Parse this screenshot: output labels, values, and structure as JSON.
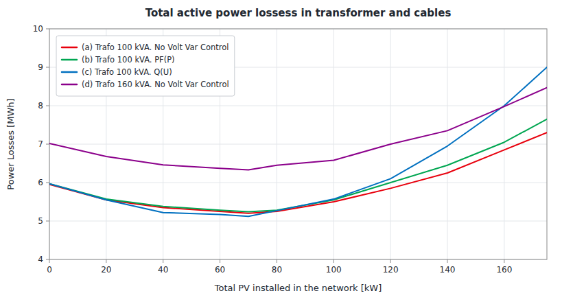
{
  "chart_data": {
    "type": "line",
    "title": "Total active power lossess in transformer and cables",
    "x_label": "Total PV installed in the network [kW]",
    "y_label": "Power Losses [MWh]",
    "x": [
      0,
      20,
      40,
      60,
      70,
      80,
      100,
      120,
      140,
      160,
      175
    ],
    "xlim": [
      0,
      175
    ],
    "ylim": [
      4,
      10
    ],
    "xticks": [
      0,
      20,
      40,
      60,
      80,
      100,
      120,
      140,
      160
    ],
    "yticks": [
      4,
      5,
      6,
      7,
      8,
      9,
      10
    ],
    "grid": true,
    "legend": "upper left",
    "series": [
      {
        "name": "(a) Trafo 100 kVA. No Volt Var Control",
        "color": "#e8000d",
        "values": [
          5.95,
          5.55,
          5.35,
          5.25,
          5.2,
          5.25,
          5.5,
          5.85,
          6.25,
          6.85,
          7.3
        ]
      },
      {
        "name": "(b) Trafo 100 kVA. PF(P)",
        "color": "#00a651",
        "values": [
          5.97,
          5.57,
          5.38,
          5.28,
          5.24,
          5.28,
          5.55,
          6.0,
          6.45,
          7.05,
          7.65
        ]
      },
      {
        "name": "(c) Trafo 100 kVA. Q(U)",
        "color": "#0070c0",
        "values": [
          5.97,
          5.55,
          5.22,
          5.17,
          5.12,
          5.27,
          5.57,
          6.1,
          6.95,
          8.0,
          9.0
        ]
      },
      {
        "name": "(d) Trafo 160 kVA. No Volt Var Control",
        "color": "#8b008b",
        "values": [
          7.02,
          6.68,
          6.46,
          6.37,
          6.33,
          6.45,
          6.58,
          7.0,
          7.35,
          7.98,
          8.47
        ]
      }
    ]
  }
}
